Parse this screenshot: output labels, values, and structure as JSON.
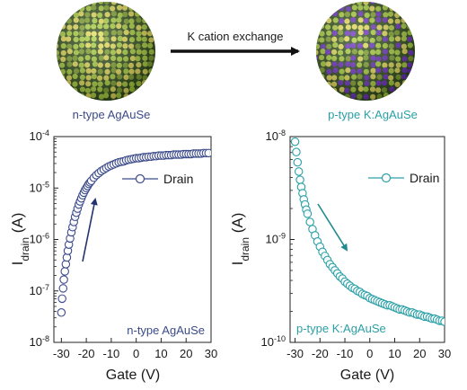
{
  "top": {
    "arrow_label": "K cation exchange",
    "left_caption": "n-type AgAuSe",
    "right_caption": "p-type K:AgAuSe",
    "colors": {
      "sphere_base": "#2d4a17",
      "sphere_green": "#a9cf3a",
      "sphere_yellow": "#e4dc55",
      "sphere_purple": "#6a2ec0",
      "arrow": "#111111",
      "left_caption": "#3b4a8a",
      "right_caption": "#2a9fa6"
    }
  },
  "chart_data": [
    {
      "type": "scatter",
      "title": "",
      "xlabel": "Gate (V)",
      "ylabel_main": "I",
      "ylabel_sub": "drain",
      "ylabel_unit": " (A)",
      "ylog": true,
      "xlim": [
        -33,
        30
      ],
      "ylim_exp": [
        -8,
        -4
      ],
      "x_ticks": [
        -30,
        -20,
        -10,
        0,
        10,
        20,
        30
      ],
      "y_ticks": [
        {
          "base": "10",
          "exp": "-8",
          "v": -8
        },
        {
          "base": "10",
          "exp": "-7",
          "v": -7
        },
        {
          "base": "10",
          "exp": "-6",
          "v": -6
        },
        {
          "base": "10",
          "exp": "-5",
          "v": -5
        },
        {
          "base": "10",
          "exp": "-4",
          "v": -4
        }
      ],
      "legend": "Drain",
      "legend_position": "upper-right",
      "annotation": "n-type AgAuSe",
      "sweep_arrow": "upward",
      "color": "#3b4a8a",
      "series": [
        {
          "name": "Drain",
          "x": [
            -30.0,
            -29.7,
            -29.3,
            -29.0,
            -28.6,
            -28.2,
            -27.8,
            -27.4,
            -27.0,
            -26.5,
            -26.0,
            -25.5,
            -25.0,
            -24.5,
            -24.0,
            -23.5,
            -23.0,
            -22.5,
            -22.0,
            -21.5,
            -21.0,
            -20.5,
            -20.0,
            -19.5,
            -19.0,
            -18.5,
            -18.0,
            -17.0,
            -16.0,
            -15.0,
            -14.0,
            -13.0,
            -12.0,
            -11.0,
            -10.0,
            -9.0,
            -8.0,
            -7.0,
            -6.0,
            -5.0,
            -4.0,
            -3.0,
            -2.0,
            -1.0,
            0.0,
            1.0,
            2.0,
            3.0,
            4.0,
            5.0,
            6.0,
            7.0,
            8.0,
            9.0,
            10.0,
            11.0,
            12.0,
            13.0,
            14.0,
            15.0,
            16.0,
            17.0,
            18.0,
            19.0,
            20.0,
            21.0,
            22.0,
            23.0,
            24.0,
            25.0,
            26.0,
            27.0,
            28.0,
            29.0
          ],
          "y_exp": [
            -7.42,
            -7.15,
            -6.95,
            -6.78,
            -6.62,
            -6.48,
            -6.35,
            -6.22,
            -6.1,
            -5.98,
            -5.86,
            -5.76,
            -5.66,
            -5.56,
            -5.48,
            -5.4,
            -5.32,
            -5.26,
            -5.2,
            -5.14,
            -5.09,
            -5.04,
            -5.0,
            -4.96,
            -4.92,
            -4.89,
            -4.86,
            -4.8,
            -4.75,
            -4.71,
            -4.67,
            -4.64,
            -4.61,
            -4.58,
            -4.56,
            -4.54,
            -4.52,
            -4.5,
            -4.49,
            -4.48,
            -4.46,
            -4.45,
            -4.44,
            -4.43,
            -4.42,
            -4.42,
            -4.41,
            -4.4,
            -4.4,
            -4.39,
            -4.39,
            -4.38,
            -4.38,
            -4.37,
            -4.37,
            -4.37,
            -4.36,
            -4.36,
            -4.36,
            -4.35,
            -4.35,
            -4.35,
            -4.35,
            -4.34,
            -4.34,
            -4.34,
            -4.34,
            -4.33,
            -4.33,
            -4.33,
            -4.33,
            -4.32,
            -4.32,
            -4.32
          ]
        }
      ]
    },
    {
      "type": "scatter",
      "title": "",
      "xlabel": "Gate (V)",
      "ylabel_main": "I",
      "ylabel_sub": "drain",
      "ylabel_unit": " (A)",
      "ylog": true,
      "xlim": [
        -32,
        30
      ],
      "ylim_exp": [
        -10,
        -8
      ],
      "x_ticks": [
        -30,
        -20,
        -10,
        0,
        10,
        20,
        30
      ],
      "y_ticks": [
        {
          "base": "10",
          "exp": "-10",
          "v": -10
        },
        {
          "base": "10",
          "exp": "-9",
          "v": -9
        },
        {
          "base": "10",
          "exp": "-8",
          "v": -8
        }
      ],
      "legend": "Drain",
      "legend_position": "upper-right",
      "annotation": "p-type K:AgAuSe",
      "sweep_arrow": "downward",
      "color": "#2a9fa6",
      "series": [
        {
          "name": "Drain",
          "x": [
            -30.0,
            -29.5,
            -29.0,
            -28.5,
            -28.0,
            -27.5,
            -27.0,
            -26.5,
            -26.0,
            -25.5,
            -25.0,
            -24.0,
            -23.0,
            -22.0,
            -21.0,
            -20.0,
            -19.0,
            -18.0,
            -17.0,
            -16.0,
            -15.0,
            -14.0,
            -13.0,
            -12.0,
            -11.0,
            -10.0,
            -9.0,
            -8.0,
            -7.0,
            -6.0,
            -5.0,
            -4.0,
            -3.0,
            -2.0,
            -1.0,
            0.0,
            1.0,
            2.0,
            3.0,
            4.0,
            5.0,
            6.0,
            7.0,
            8.0,
            9.0,
            10.0,
            11.0,
            12.0,
            13.0,
            14.0,
            15.0,
            16.0,
            17.0,
            18.0,
            19.0,
            20.0,
            21.0,
            22.0,
            23.0,
            24.0,
            25.0,
            26.0,
            27.0,
            28.0,
            29.0,
            30.0
          ],
          "y_exp": [
            -8.05,
            -8.15,
            -8.25,
            -8.34,
            -8.42,
            -8.49,
            -8.55,
            -8.61,
            -8.66,
            -8.71,
            -8.75,
            -8.83,
            -8.9,
            -8.96,
            -9.02,
            -9.07,
            -9.12,
            -9.16,
            -9.2,
            -9.24,
            -9.27,
            -9.3,
            -9.33,
            -9.36,
            -9.38,
            -9.41,
            -9.43,
            -9.45,
            -9.47,
            -9.48,
            -9.5,
            -9.51,
            -9.53,
            -9.54,
            -9.55,
            -9.57,
            -9.58,
            -9.59,
            -9.6,
            -9.61,
            -9.62,
            -9.63,
            -9.64,
            -9.64,
            -9.65,
            -9.66,
            -9.67,
            -9.68,
            -9.68,
            -9.69,
            -9.7,
            -9.71,
            -9.71,
            -9.72,
            -9.73,
            -9.73,
            -9.74,
            -9.75,
            -9.75,
            -9.76,
            -9.77,
            -9.77,
            -9.78,
            -9.79,
            -9.79,
            -9.8
          ]
        }
      ]
    }
  ]
}
